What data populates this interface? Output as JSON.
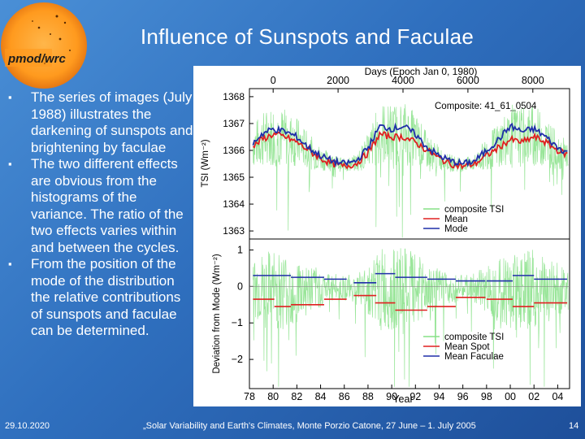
{
  "slide": {
    "title": "Influence of Sunspots and Faculae",
    "logo_text": "pmod/wrc",
    "bullets": [
      "The series of images (July 1988) illustrates the darkening of sunspots and brightening by faculae",
      "The two different effects are obvious from the histograms of the variance. The ratio of the two effects varies within and between the cycles.",
      "From the position of the mode of the distribution the relative contributions of sunspots and faculae can be determined."
    ],
    "bullet_icon": "square-bullet-icon",
    "footer": {
      "date": "29.10.2020",
      "conference": "„Solar Variability and Earth's Climates, Monte Porzio Catone, 27 June – 1. July 2005",
      "page": "14"
    }
  },
  "chart_data": [
    {
      "type": "line",
      "title": "Composite: 41_61_0504",
      "ylabel": "TSI (Wm⁻²)",
      "top_axis_label": "Days (Epoch Jan 0, 1980)",
      "top_axis_ticks": [
        "0",
        "2000",
        "4000",
        "6000",
        "8000"
      ],
      "ylim": [
        1362.7,
        1368.3
      ],
      "yticks": [
        "1368",
        "1367",
        "1366",
        "1365",
        "1364",
        "1363"
      ],
      "x": [
        1978,
        1979,
        1980,
        1981,
        1982,
        1983,
        1984,
        1985,
        1986,
        1987,
        1988,
        1989,
        1990,
        1991,
        1992,
        1993,
        1994,
        1995,
        1996,
        1997,
        1998,
        1999,
        2000,
        2001,
        2002,
        2003,
        2004,
        2005
      ],
      "series": [
        {
          "name": "composite TSI",
          "color": "#86e086",
          "values": [
            1366.2,
            1366.6,
            1366.8,
            1366.7,
            1366.5,
            1366.1,
            1365.8,
            1365.6,
            1365.5,
            1365.6,
            1366.1,
            1366.9,
            1366.8,
            1366.9,
            1366.6,
            1366.1,
            1365.8,
            1365.6,
            1365.5,
            1365.6,
            1366.0,
            1366.4,
            1366.8,
            1366.7,
            1366.8,
            1366.5,
            1366.1,
            1365.9
          ]
        },
        {
          "name": "Mean",
          "color": "#e02020",
          "values": [
            1366.0,
            1366.4,
            1366.6,
            1366.5,
            1366.3,
            1366.0,
            1365.7,
            1365.5,
            1365.4,
            1365.5,
            1365.9,
            1366.6,
            1366.5,
            1366.5,
            1366.3,
            1366.0,
            1365.7,
            1365.5,
            1365.4,
            1365.5,
            1365.8,
            1366.1,
            1366.4,
            1366.3,
            1366.5,
            1366.3,
            1366.0,
            1365.8
          ]
        },
        {
          "name": "Mode",
          "color": "#1f2fa8",
          "values": [
            1366.1,
            1366.6,
            1366.8,
            1366.7,
            1366.5,
            1366.1,
            1365.8,
            1365.6,
            1365.5,
            1365.6,
            1366.1,
            1366.9,
            1366.8,
            1366.9,
            1366.6,
            1366.1,
            1365.8,
            1365.6,
            1365.5,
            1365.6,
            1366.0,
            1366.4,
            1366.9,
            1366.7,
            1366.8,
            1366.5,
            1366.1,
            1365.9
          ]
        }
      ],
      "legend": "bottom-right"
    },
    {
      "type": "step",
      "ylabel": "Deviation from Mode (Wm⁻²)",
      "xlabel": "Year",
      "xlim": [
        1978,
        2005
      ],
      "xticks": [
        "78",
        "80",
        "82",
        "84",
        "86",
        "88",
        "90",
        "92",
        "94",
        "96",
        "98",
        "00",
        "02",
        "04"
      ],
      "ylim": [
        -2.8,
        1.3
      ],
      "yticks": [
        "1",
        "0",
        "−1",
        "−2"
      ],
      "series": [
        {
          "name": "composite TSI",
          "color": "#86e086"
        },
        {
          "name": "Mean Spot",
          "color": "#e02020",
          "segments": [
            {
              "from": 1978.3,
              "to": 1980.1,
              "value": -0.35
            },
            {
              "from": 1980.1,
              "to": 1981.5,
              "value": -0.55
            },
            {
              "from": 1981.5,
              "to": 1984.3,
              "value": -0.5
            },
            {
              "from": 1984.3,
              "to": 1986.2,
              "value": -0.35
            },
            {
              "from": 1986.8,
              "to": 1988.7,
              "value": -0.25
            },
            {
              "from": 1988.6,
              "to": 1990.3,
              "value": -0.45
            },
            {
              "from": 1990.3,
              "to": 1993.0,
              "value": -0.65
            },
            {
              "from": 1993.0,
              "to": 1995.4,
              "value": -0.55
            },
            {
              "from": 1995.4,
              "to": 1997.9,
              "value": -0.3
            },
            {
              "from": 1998.0,
              "to": 2000.2,
              "value": -0.35
            },
            {
              "from": 2000.2,
              "to": 2002.0,
              "value": -0.55
            },
            {
              "from": 2002.0,
              "to": 2004.8,
              "value": -0.45
            }
          ]
        },
        {
          "name": "Mean Faculae",
          "color": "#1f2fa8",
          "segments": [
            {
              "from": 1978.3,
              "to": 1980.1,
              "value": 0.3
            },
            {
              "from": 1980.1,
              "to": 1981.5,
              "value": 0.3
            },
            {
              "from": 1981.5,
              "to": 1984.3,
              "value": 0.25
            },
            {
              "from": 1984.3,
              "to": 1986.2,
              "value": 0.2
            },
            {
              "from": 1986.8,
              "to": 1988.7,
              "value": 0.1
            },
            {
              "from": 1988.6,
              "to": 1990.3,
              "value": 0.35
            },
            {
              "from": 1990.3,
              "to": 1993.0,
              "value": 0.25
            },
            {
              "from": 1993.0,
              "to": 1995.4,
              "value": 0.2
            },
            {
              "from": 1995.4,
              "to": 1997.9,
              "value": 0.15
            },
            {
              "from": 1998.0,
              "to": 2000.2,
              "value": 0.15
            },
            {
              "from": 2000.2,
              "to": 2002.0,
              "value": 0.3
            },
            {
              "from": 2002.0,
              "to": 2004.8,
              "value": 0.2
            }
          ]
        }
      ],
      "legend": "bottom-right"
    }
  ]
}
